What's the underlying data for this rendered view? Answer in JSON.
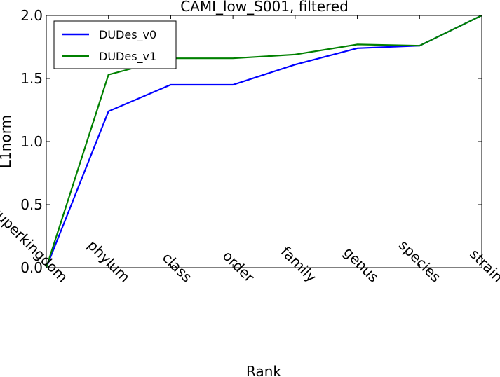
{
  "chart_data": {
    "type": "line",
    "title": "CAMI_low_S001, filtered",
    "xlabel": "Rank",
    "ylabel": "L1norm",
    "categories": [
      "superkingdom",
      "phylum",
      "class",
      "order",
      "family",
      "genus",
      "species",
      "strain"
    ],
    "ylim": [
      0.0,
      2.0
    ],
    "yticks": [
      "0.0",
      "0.5",
      "1.0",
      "1.5",
      "2.0"
    ],
    "grid": false,
    "legend_position": "top-left",
    "series": [
      {
        "name": "DUDes_v0",
        "color": "#0000ff",
        "values": [
          0.0,
          1.24,
          1.45,
          1.45,
          1.61,
          1.74,
          1.76,
          2.0
        ]
      },
      {
        "name": "DUDes_v1",
        "color": "#008000",
        "values": [
          0.0,
          1.53,
          1.66,
          1.66,
          1.69,
          1.77,
          1.76,
          2.0
        ]
      }
    ]
  }
}
